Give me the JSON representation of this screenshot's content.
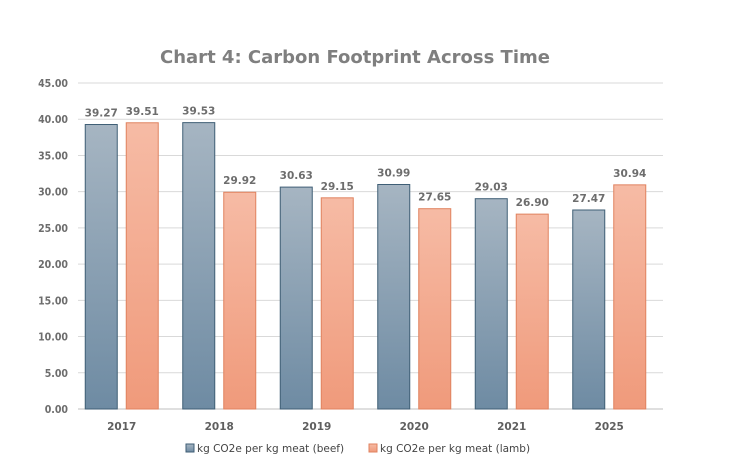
{
  "chart_data": {
    "type": "bar",
    "title": "Chart 4: Carbon Footprint Across Time",
    "categories": [
      "2017",
      "2018",
      "2019",
      "2020",
      "2021",
      "2025"
    ],
    "series": [
      {
        "name": "kg CO2e per kg meat (beef)",
        "values": [
          39.27,
          39.53,
          30.63,
          30.99,
          29.03,
          27.47
        ],
        "labels": [
          "39.27",
          "39.53",
          "30.63",
          "30.99",
          "29.03",
          "27.47"
        ],
        "color_top": "#a6b5c2",
        "color_bottom": "#6e8ba3",
        "border": "#3f5e75"
      },
      {
        "name": "kg CO2e per kg meat (lamb)",
        "values": [
          39.51,
          29.92,
          29.15,
          27.65,
          26.9,
          30.94
        ],
        "labels": [
          "39.51",
          "29.92",
          "29.15",
          "27.65",
          "26.90",
          "30.94"
        ],
        "color_top": "#f6bba5",
        "color_bottom": "#f09a7b",
        "border": "#e0825f"
      }
    ],
    "ylim": [
      0,
      45
    ],
    "yticks": [
      "0.00",
      "5.00",
      "10.00",
      "15.00",
      "20.00",
      "25.00",
      "30.00",
      "35.00",
      "40.00",
      "45.00"
    ],
    "ytick_values": [
      0,
      5,
      10,
      15,
      20,
      25,
      30,
      35,
      40,
      45
    ],
    "grid": true,
    "legend": "bottom"
  }
}
